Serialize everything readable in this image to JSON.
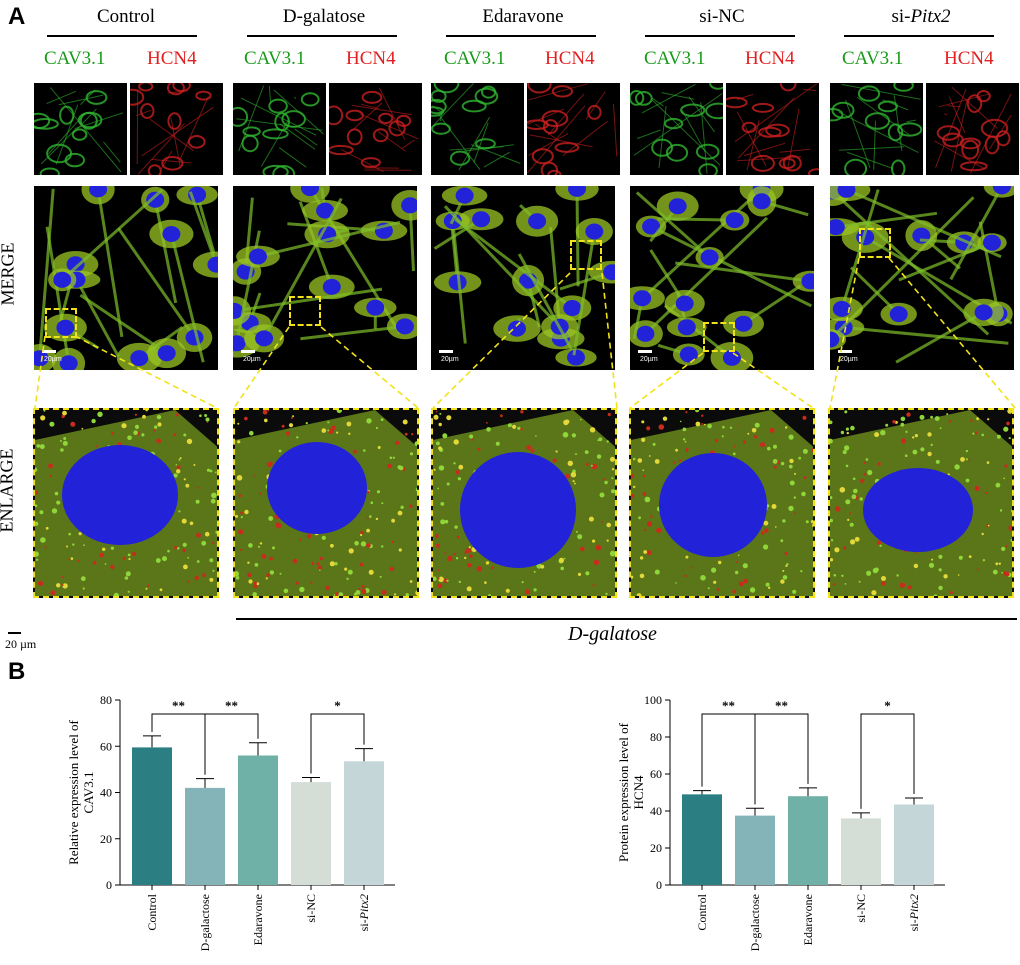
{
  "panelA": {
    "letter": "A",
    "groups": [
      "Control",
      "D-galatose",
      "Edaravone",
      "si-NC",
      "si-"
    ],
    "pitx_italic": "Pitx2",
    "channels": [
      "CAV3.1",
      "HCN4"
    ],
    "rows": [
      "MERGE",
      "ENLARGE"
    ],
    "scalebar_small": "20µm",
    "scale_main": "20 µm",
    "treatment_label": "D-galatose",
    "colors": {
      "green": "#1a9a1a",
      "red": "#e02020",
      "blue": "#2222d8",
      "yellow": "#f2e21a"
    }
  },
  "panelB": {
    "letter": "B"
  },
  "chart_data": [
    {
      "type": "bar",
      "categories": [
        "Control",
        "D-galactose",
        "Edaravone",
        "si-NC",
        "si-Pitx2"
      ],
      "values": [
        59.5,
        42,
        56,
        44.5,
        53.5
      ],
      "errors": [
        5,
        4,
        5.5,
        2,
        5.5
      ],
      "ylabel": "Relative expression level of CAV3.1",
      "ylim": [
        0,
        80
      ],
      "yticks": [
        0,
        20,
        40,
        60,
        80
      ],
      "significance": [
        {
          "from": 0,
          "to": 1,
          "label": "**"
        },
        {
          "from": 1,
          "to": 2,
          "label": "**"
        },
        {
          "from": 3,
          "to": 4,
          "label": "*"
        }
      ],
      "colors": [
        "#2b7f83",
        "#84b3b8",
        "#6fb1a6",
        "#d4ddd6",
        "#c4d6d8"
      ]
    },
    {
      "type": "bar",
      "categories": [
        "Control",
        "D-galactose",
        "Edaravone",
        "si-NC",
        "si-Pitx2"
      ],
      "values": [
        49,
        37.5,
        48,
        36,
        43.5
      ],
      "errors": [
        2,
        4,
        4.5,
        3,
        3.5
      ],
      "ylabel": "Protein expression level of HCN4",
      "ylim": [
        0,
        100
      ],
      "yticks": [
        0,
        20,
        40,
        60,
        80,
        100
      ],
      "significance": [
        {
          "from": 0,
          "to": 1,
          "label": "**"
        },
        {
          "from": 1,
          "to": 2,
          "label": "**"
        },
        {
          "from": 3,
          "to": 4,
          "label": "*"
        }
      ],
      "colors": [
        "#2b7f83",
        "#84b3b8",
        "#6fb1a6",
        "#d4ddd6",
        "#c4d6d8"
      ]
    }
  ]
}
